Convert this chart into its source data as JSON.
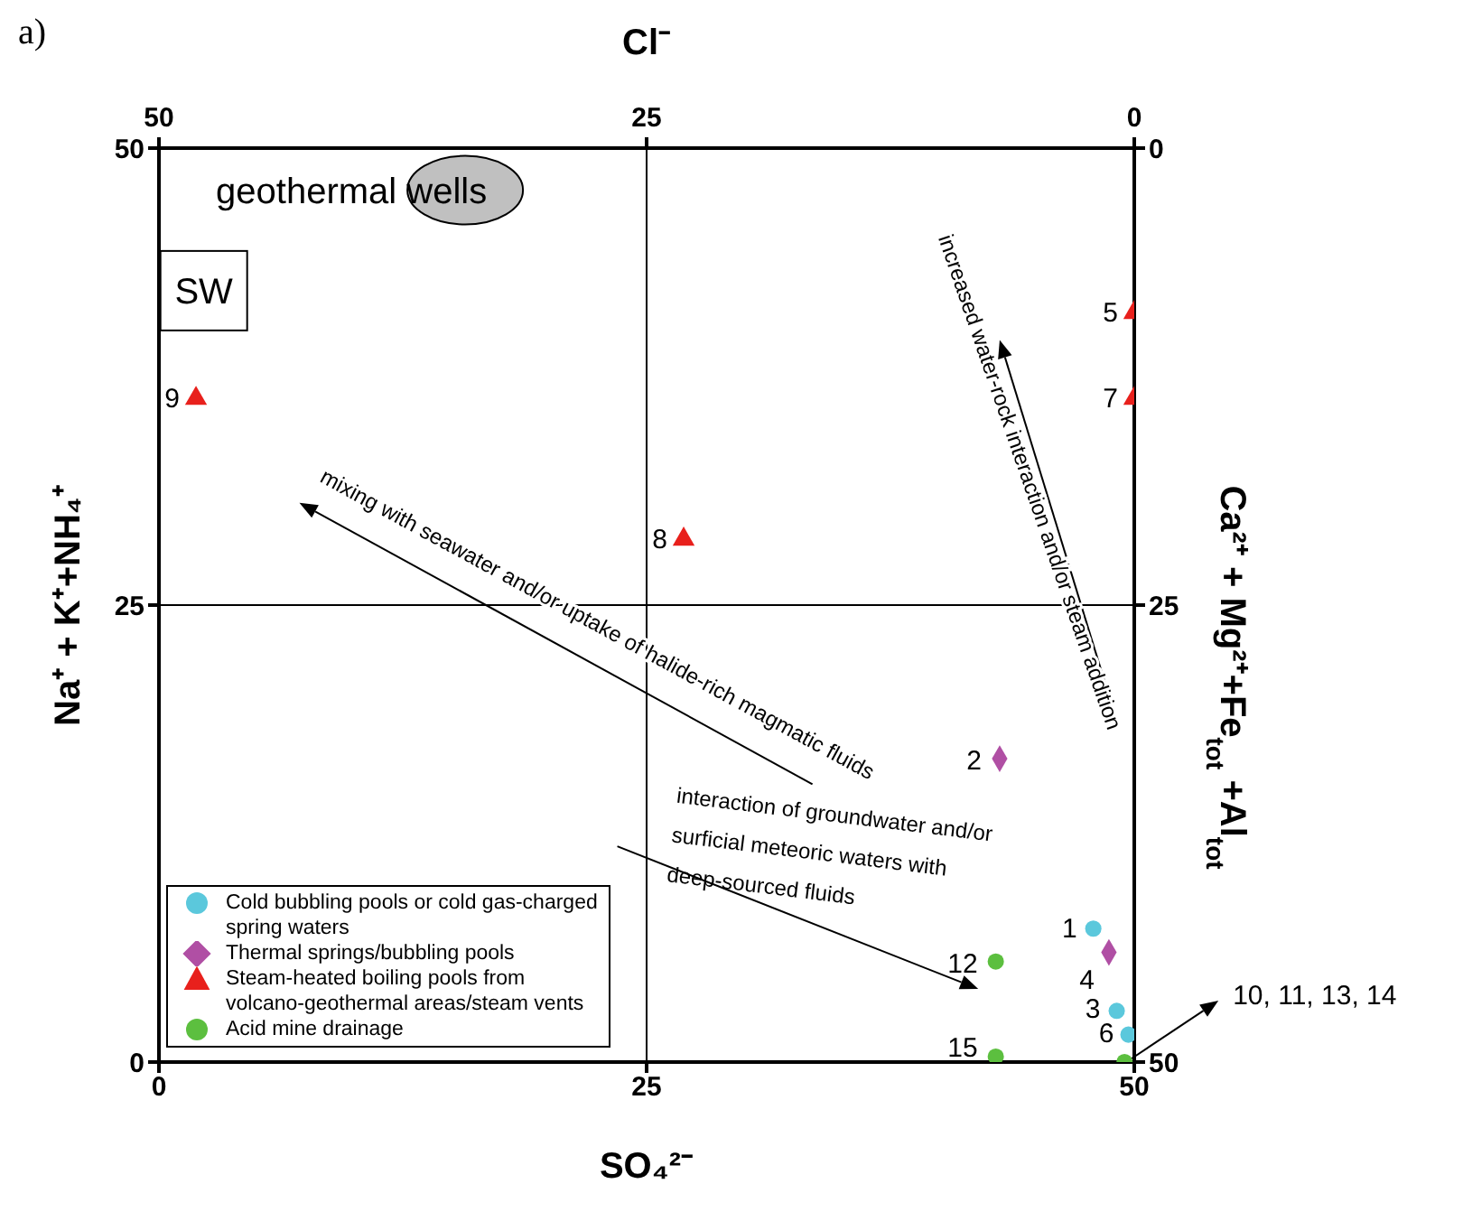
{
  "chart_data": {
    "type": "scatter",
    "xlabel": "SO₄²⁻",
    "ylabel": "Na⁺ + K⁺+NH₄⁺",
    "x2label": "Cl⁻",
    "y2label": "Ca²⁺ + Mg²⁺+Fe$_{tot}$ +Al$_{tot}$",
    "xlim": [
      0,
      50
    ],
    "xticks": [
      0,
      25,
      50
    ],
    "ylim": [
      0,
      50
    ],
    "yticks": [
      0,
      25,
      50
    ],
    "x2lim": [
      50,
      0
    ],
    "x2ticks": [
      50,
      25,
      0
    ],
    "y2lim": [
      50,
      0
    ],
    "y2ticks": [
      50,
      25,
      0
    ],
    "grid": true,
    "legend": "bottom left",
    "series": [
      {
        "name": "Cold bubbling pools or cold gas-charged spring waters",
        "color": "#5bc8dc",
        "marker": "circle",
        "x": [
          47.9,
          49.1,
          49.7
        ],
        "values": [
          7.3,
          2.8,
          1.5
        ]
      },
      {
        "name": "Thermal springs/bubbling pools",
        "color": "#b04fa4",
        "marker": "diamond",
        "x": [
          43.1,
          48.7
        ],
        "values": [
          16.6,
          6.0
        ]
      },
      {
        "name": "Steam-heated boiling pools from volcano-geothermal areas/steam vents",
        "color": "#e8201c",
        "marker": "triangle",
        "x": [
          50,
          50,
          26.9,
          1.9
        ],
        "values": [
          41.0,
          36.3,
          28.6,
          36.3
        ]
      },
      {
        "name": "Acid mine drainage",
        "color": "#5cbf3f",
        "marker": "circle",
        "x": [
          42.9,
          42.9,
          49.5
        ],
        "values": [
          5.5,
          0.3,
          0
        ]
      }
    ],
    "annotations": [
      "a)",
      "geothermal wells",
      "SW",
      "mixing with seawater and/or uptake of halide-rich magmatic fluids",
      "increased water-rock interaction and/or steam addition",
      "interaction of groundwater and/or\nsurficial meteoric waters with\ndeep-sourced fluids",
      {
        "text": "1",
        "x": 47.9,
        "y": 7.3
      },
      {
        "text": "2",
        "x": 43.1,
        "y": 16.6
      },
      {
        "text": "3",
        "x": 49.1,
        "y": 2.8
      },
      {
        "text": "4",
        "x": 48.7,
        "y": 6.0
      },
      {
        "text": "5",
        "x": 50,
        "y": 41.0
      },
      {
        "text": "6",
        "x": 49.7,
        "y": 1.5
      },
      {
        "text": "7",
        "x": 50,
        "y": 36.3
      },
      {
        "text": "8",
        "x": 26.9,
        "y": 28.6
      },
      {
        "text": "9",
        "x": 1.9,
        "y": 36.3
      },
      {
        "text": "12",
        "x": 42.9,
        "y": 5.5
      },
      {
        "text": "15",
        "x": 42.9,
        "y": 0.3
      },
      {
        "text": "10, 11, 13, 14",
        "x": 49.5,
        "y": 0
      }
    ]
  }
}
